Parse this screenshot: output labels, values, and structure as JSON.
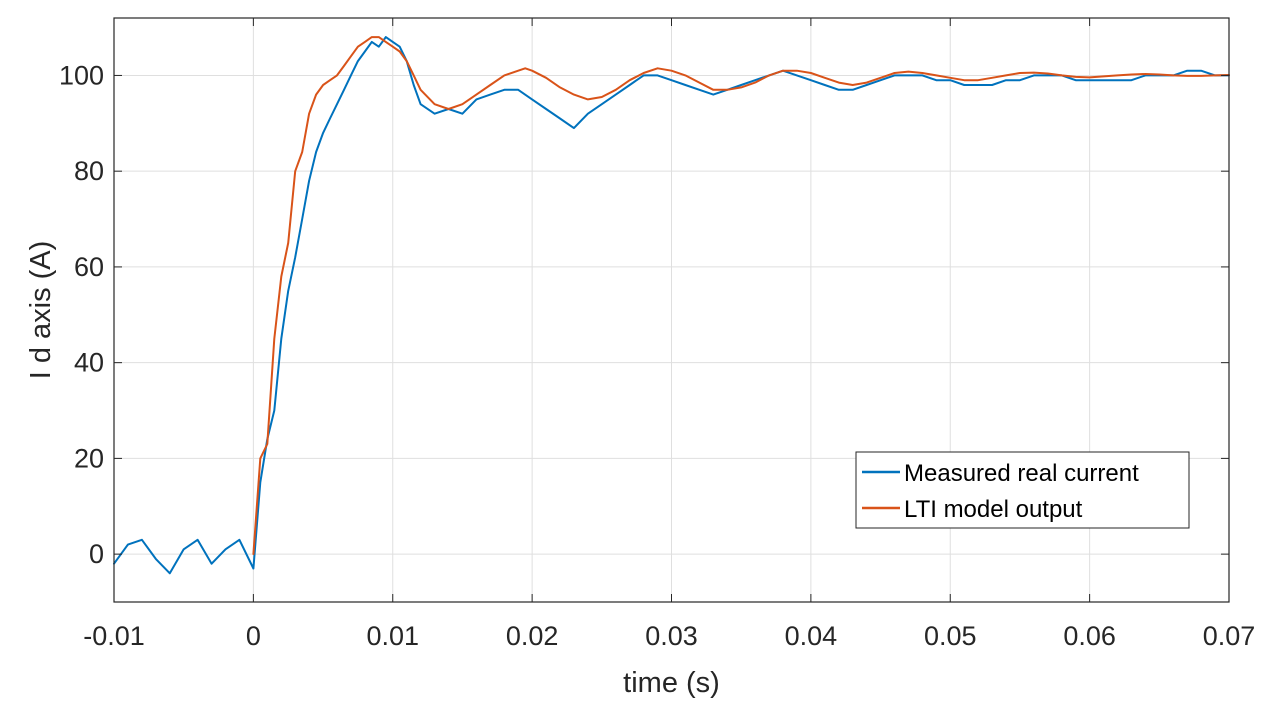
{
  "chart_data": {
    "type": "line",
    "title": "",
    "xlabel": "time (s)",
    "ylabel": "I d axis (A)",
    "xlim": [
      -0.01,
      0.07
    ],
    "ylim": [
      -10,
      112
    ],
    "x_ticks": [
      -0.01,
      0,
      0.01,
      0.02,
      0.03,
      0.04,
      0.05,
      0.06,
      0.07
    ],
    "x_tick_labels": [
      "-0.01",
      "0",
      "0.01",
      "0.02",
      "0.03",
      "0.04",
      "0.05",
      "0.06",
      "0.07"
    ],
    "y_ticks": [
      0,
      20,
      40,
      60,
      80,
      100
    ],
    "y_tick_labels": [
      "0",
      "20",
      "40",
      "60",
      "80",
      "100"
    ],
    "grid": true,
    "legend_position": "bottom-right",
    "series": [
      {
        "name": "Measured real current",
        "color": "#0072BD",
        "x": [
          -0.01,
          -0.009,
          -0.008,
          -0.007,
          -0.006,
          -0.005,
          -0.004,
          -0.003,
          -0.002,
          -0.001,
          0,
          0.0005,
          0.001,
          0.0015,
          0.002,
          0.0025,
          0.003,
          0.0035,
          0.004,
          0.0045,
          0.005,
          0.0055,
          0.006,
          0.0065,
          0.007,
          0.0075,
          0.008,
          0.0085,
          0.009,
          0.0095,
          0.01,
          0.0105,
          0.011,
          0.0115,
          0.012,
          0.013,
          0.014,
          0.015,
          0.016,
          0.017,
          0.018,
          0.019,
          0.02,
          0.021,
          0.022,
          0.023,
          0.024,
          0.025,
          0.026,
          0.027,
          0.028,
          0.029,
          0.03,
          0.031,
          0.032,
          0.033,
          0.034,
          0.035,
          0.036,
          0.037,
          0.038,
          0.039,
          0.04,
          0.041,
          0.042,
          0.043,
          0.044,
          0.045,
          0.046,
          0.047,
          0.048,
          0.049,
          0.05,
          0.051,
          0.052,
          0.053,
          0.054,
          0.055,
          0.056,
          0.057,
          0.058,
          0.059,
          0.06,
          0.061,
          0.062,
          0.063,
          0.064,
          0.065,
          0.066,
          0.067,
          0.068,
          0.069,
          0.07
        ],
        "y": [
          -2,
          2,
          3,
          -1,
          -4,
          1,
          3,
          -2,
          1,
          3,
          -3,
          15,
          24,
          30,
          45,
          55,
          62,
          70,
          78,
          84,
          88,
          91,
          94,
          97,
          100,
          103,
          105,
          107,
          106,
          108,
          107,
          106,
          103,
          98,
          94,
          92,
          93,
          92,
          95,
          96,
          97,
          97,
          95,
          93,
          91,
          89,
          92,
          94,
          96,
          98,
          100,
          100,
          99,
          98,
          97,
          96,
          97,
          98,
          99,
          100,
          101,
          100,
          99,
          98,
          97,
          97,
          98,
          99,
          100,
          100,
          100,
          99,
          99,
          98,
          98,
          98,
          99,
          99,
          100,
          100,
          100,
          99,
          99,
          99,
          99,
          99,
          100,
          100,
          100,
          101,
          101,
          100,
          100
        ]
      },
      {
        "name": "LTI model output",
        "color": "#D95319",
        "x": [
          0,
          0.0005,
          0.001,
          0.0015,
          0.002,
          0.0025,
          0.003,
          0.0035,
          0.004,
          0.0045,
          0.005,
          0.0055,
          0.006,
          0.0065,
          0.007,
          0.0075,
          0.008,
          0.0085,
          0.009,
          0.0095,
          0.01,
          0.0105,
          0.011,
          0.0115,
          0.012,
          0.013,
          0.014,
          0.015,
          0.016,
          0.017,
          0.018,
          0.019,
          0.0195,
          0.02,
          0.021,
          0.022,
          0.023,
          0.024,
          0.025,
          0.026,
          0.027,
          0.028,
          0.029,
          0.03,
          0.031,
          0.032,
          0.033,
          0.034,
          0.035,
          0.036,
          0.037,
          0.038,
          0.039,
          0.04,
          0.041,
          0.042,
          0.043,
          0.044,
          0.045,
          0.046,
          0.047,
          0.048,
          0.049,
          0.05,
          0.051,
          0.052,
          0.053,
          0.054,
          0.055,
          0.056,
          0.057,
          0.058,
          0.059,
          0.06,
          0.061,
          0.062,
          0.063,
          0.064,
          0.065,
          0.066,
          0.067,
          0.068,
          0.069,
          0.07
        ],
        "y": [
          0,
          20,
          23,
          45,
          58,
          65,
          80,
          84,
          92,
          96,
          98,
          99,
          100,
          102,
          104,
          106,
          107,
          108,
          108,
          107,
          106,
          105,
          103,
          100,
          97,
          94,
          93,
          94,
          96,
          98,
          100,
          101,
          101.5,
          101,
          99.5,
          97.5,
          96,
          95,
          95.5,
          97,
          99,
          100.5,
          101.5,
          101,
          100,
          98.5,
          97,
          97,
          97.5,
          98.5,
          100,
          101,
          101,
          100.5,
          99.5,
          98.5,
          98,
          98.5,
          99.5,
          100.5,
          100.8,
          100.5,
          100,
          99.5,
          99,
          99,
          99.5,
          100,
          100.5,
          100.6,
          100.4,
          100,
          99.7,
          99.6,
          99.8,
          100,
          100.2,
          100.3,
          100.2,
          100,
          99.9,
          99.9,
          100,
          100.1
        ]
      }
    ]
  }
}
